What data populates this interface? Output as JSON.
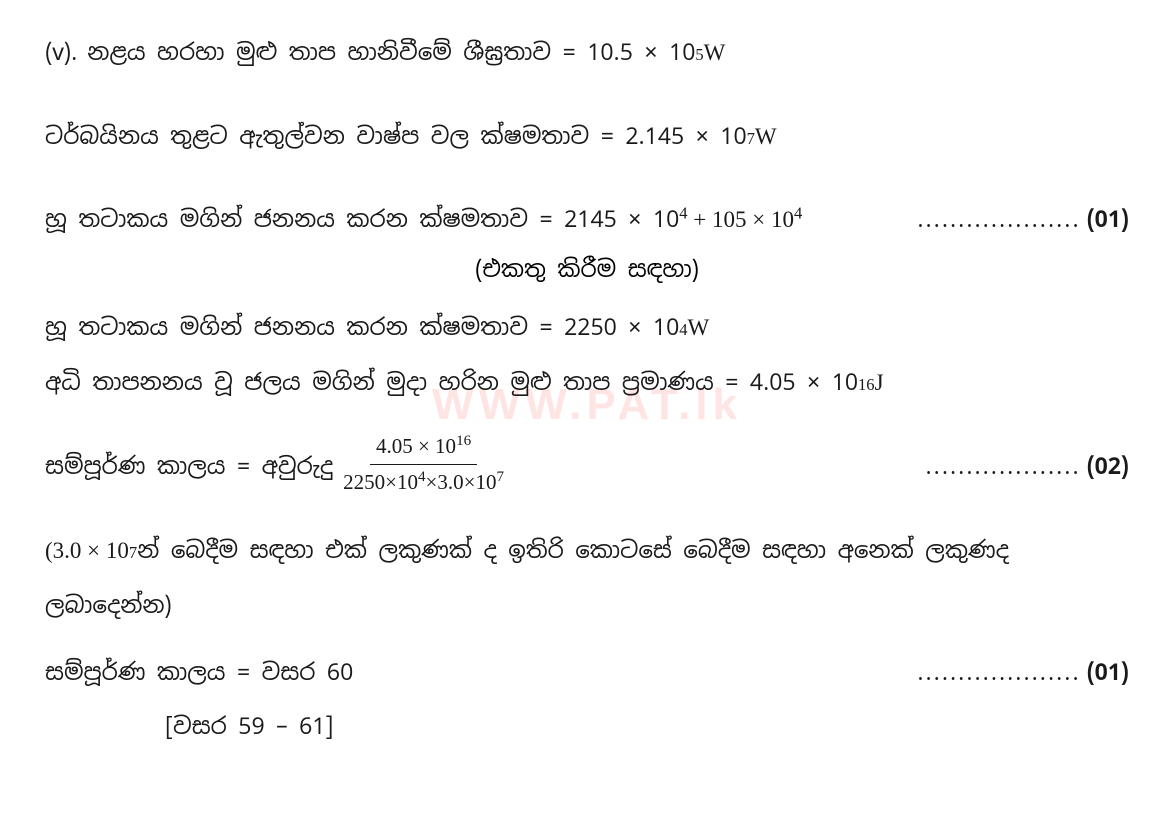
{
  "part_label": "(v).",
  "line1": {
    "text": "නළය හරහා මුළු තාප හානිවීමේ ශීඝ්‍රතාව = 10.5 × 10",
    "sup": "5",
    "unit": " W"
  },
  "line2": {
    "text": "ටර්බයිනය තුළට ඇතුල්වන වාෂ්ප වල ක්ෂමතාව = 2.145 × 10",
    "sup": "7",
    "unit": " W"
  },
  "line3": {
    "text": "හූ තටාකය මගින් ජනනය කරන ක්ෂමතාව = 2145 × 10",
    "sup1": "4",
    "text2": " + 105 × 10",
    "sup2": "4",
    "text3": " ",
    "dots": "....................",
    "mark": "(01)"
  },
  "note": "(එකතු කිරීම සඳහා)",
  "line4": {
    "text": "හූ තටාකය මගින් ජනනය කරන ක්ෂමතාව  = 2250 × 10",
    "sup": "4",
    "unit": " W"
  },
  "line5": {
    "text": "අධි තාපනනය වූ  ජලය මගින් මුදා හරින මුළු තාප ප්‍රමාණය = 4.05 × 10",
    "sup": "16",
    "unit": " J"
  },
  "line6": {
    "text": "සම්පූර්ණ කාලය  =  අවුරුදු ",
    "frac_num": "4.05 × 10",
    "frac_num_sup": "16",
    "frac_den": "2250×10",
    "frac_den_sup1": "4",
    "frac_den_mid": "×3.0×10",
    "frac_den_sup2": "7",
    "dots": "...................",
    "mark": "(02)"
  },
  "line7": {
    "text1": "(3.0 × 10",
    "sup": "7",
    "text2": " න් බෙදීම සඳහා එක් ලකුණක් ද ඉතිරි කොටසේ බෙදීම සඳහා අනෙක් ලකුණද"
  },
  "line8": "ලබාදෙන්න)",
  "line9": {
    "text": "සම්පූර්ණ කාලය  =  වසර 60",
    "dots": "....................",
    "mark": "(01)"
  },
  "line10": "[වසර 59 – 61]",
  "watermark": "WWW.PAT.lk",
  "colors": {
    "text": "#1a1a1a",
    "background": "#ffffff",
    "watermark": "#ffe4e4"
  },
  "typography": {
    "body_fontsize": 23,
    "fraction_fontsize": 21,
    "watermark_fontsize": 44
  }
}
